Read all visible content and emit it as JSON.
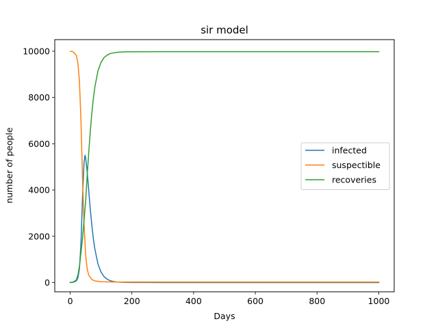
{
  "chart_data": {
    "type": "line",
    "title": "sir model",
    "xlabel": "Days",
    "ylabel": "number of people",
    "xlim": [
      -50,
      1050
    ],
    "ylim": [
      -400,
      10500
    ],
    "xticks": [
      0,
      200,
      400,
      600,
      800,
      1000
    ],
    "yticks": [
      0,
      2000,
      4000,
      6000,
      8000,
      10000
    ],
    "grid": false,
    "legend_position": "center-right",
    "series": [
      {
        "name": "infected",
        "color": "#1f77b4",
        "x": [
          0,
          10,
          20,
          25,
          30,
          35,
          40,
          45,
          48,
          50,
          55,
          60,
          65,
          70,
          75,
          80,
          90,
          100,
          110,
          120,
          130,
          140,
          150,
          170,
          200,
          250,
          300,
          1000
        ],
        "y": [
          1,
          10,
          70,
          200,
          600,
          1700,
          3700,
          5200,
          5500,
          5400,
          4800,
          4000,
          3200,
          2500,
          1900,
          1450,
          800,
          450,
          250,
          140,
          80,
          45,
          25,
          10,
          3,
          1,
          0,
          0
        ]
      },
      {
        "name": "suspectible",
        "color": "#ff7f0e",
        "x": [
          0,
          10,
          20,
          25,
          30,
          35,
          40,
          45,
          50,
          55,
          60,
          70,
          80,
          100,
          150,
          200,
          1000
        ],
        "y": [
          9999,
          9970,
          9820,
          9480,
          8700,
          7000,
          4500,
          2500,
          1200,
          600,
          320,
          130,
          70,
          35,
          22,
          20,
          20
        ]
      },
      {
        "name": "recoveries",
        "color": "#2ca02c",
        "x": [
          0,
          10,
          20,
          25,
          30,
          35,
          40,
          45,
          50,
          55,
          60,
          65,
          70,
          75,
          80,
          90,
          100,
          110,
          120,
          130,
          150,
          170,
          200,
          300,
          1000
        ],
        "y": [
          0,
          20,
          110,
          320,
          700,
          1300,
          1900,
          2700,
          3500,
          4600,
          5600,
          6500,
          7300,
          7950,
          8450,
          9150,
          9520,
          9730,
          9830,
          9900,
          9950,
          9970,
          9975,
          9980,
          9980
        ]
      }
    ]
  }
}
